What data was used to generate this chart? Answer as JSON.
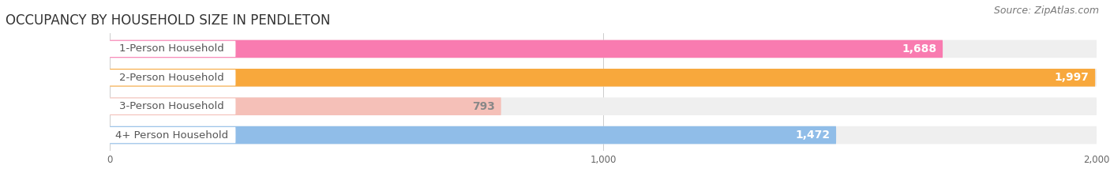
{
  "title": "OCCUPANCY BY HOUSEHOLD SIZE IN PENDLETON",
  "source": "Source: ZipAtlas.com",
  "categories": [
    "1-Person Household",
    "2-Person Household",
    "3-Person Household",
    "4+ Person Household"
  ],
  "values": [
    1688,
    1997,
    793,
    1472
  ],
  "bar_colors": [
    "#F97BB0",
    "#F8A83C",
    "#F5C0B8",
    "#90BDE8"
  ],
  "bar_background_color": "#EFEFEF",
  "value_labels": [
    "1,688",
    "1,997",
    "793",
    "1,472"
  ],
  "value_label_colors": [
    "#FFFFFF",
    "#FFFFFF",
    "#888888",
    "#FFFFFF"
  ],
  "xmin": -200,
  "xmax": 2000,
  "xticks": [
    0,
    1000,
    2000
  ],
  "xtick_labels": [
    "0",
    "1,000",
    "2,000"
  ],
  "label_box_color": "#FFFFFF",
  "label_text_color": "#555555",
  "title_fontsize": 12,
  "source_fontsize": 9,
  "bar_label_fontsize": 10,
  "category_fontsize": 9.5,
  "background_color": "#FFFFFF",
  "bar_height": 0.62
}
